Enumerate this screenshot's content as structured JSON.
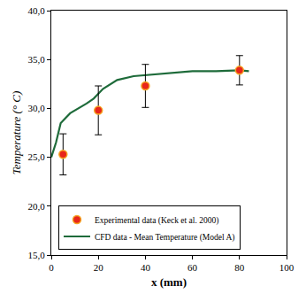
{
  "chart_data": {
    "type": "line",
    "x_label": "x (mm)",
    "y_label": "Temperature (° C)",
    "xlim": [
      0,
      100
    ],
    "xticks": [
      0,
      20,
      40,
      60,
      80,
      100
    ],
    "ylim": [
      15,
      40
    ],
    "yticks": [
      {
        "value": 15,
        "label": "15,0"
      },
      {
        "value": 20,
        "label": "20,0"
      },
      {
        "value": 25,
        "label": "25,0"
      },
      {
        "value": 30,
        "label": "30,0"
      },
      {
        "value": 35,
        "label": "35,0"
      },
      {
        "value": 40,
        "label": "40,0"
      }
    ],
    "grid": false,
    "legend": "lower left",
    "series": [
      {
        "name": "Experimental data (Keck et al. 2000)",
        "type": "scatter",
        "marker": "circle",
        "color": "#e8261b",
        "x": [
          5,
          20,
          40,
          80
        ],
        "values": [
          25.3,
          29.8,
          32.3,
          33.9
        ],
        "error": [
          2.1,
          2.5,
          2.2,
          1.5
        ]
      },
      {
        "name": "CFD data - Mean Temperature (Model A)",
        "type": "line",
        "line_style": "solid",
        "color": "#1e6b3a",
        "x": [
          0,
          2,
          4,
          8,
          15,
          18,
          22,
          28,
          35,
          40,
          50,
          60,
          70,
          80,
          84
        ],
        "values": [
          25.0,
          26.5,
          28.5,
          29.5,
          30.5,
          31.0,
          32.0,
          32.9,
          33.3,
          33.4,
          33.6,
          33.8,
          33.8,
          33.9,
          33.8
        ]
      }
    ]
  }
}
